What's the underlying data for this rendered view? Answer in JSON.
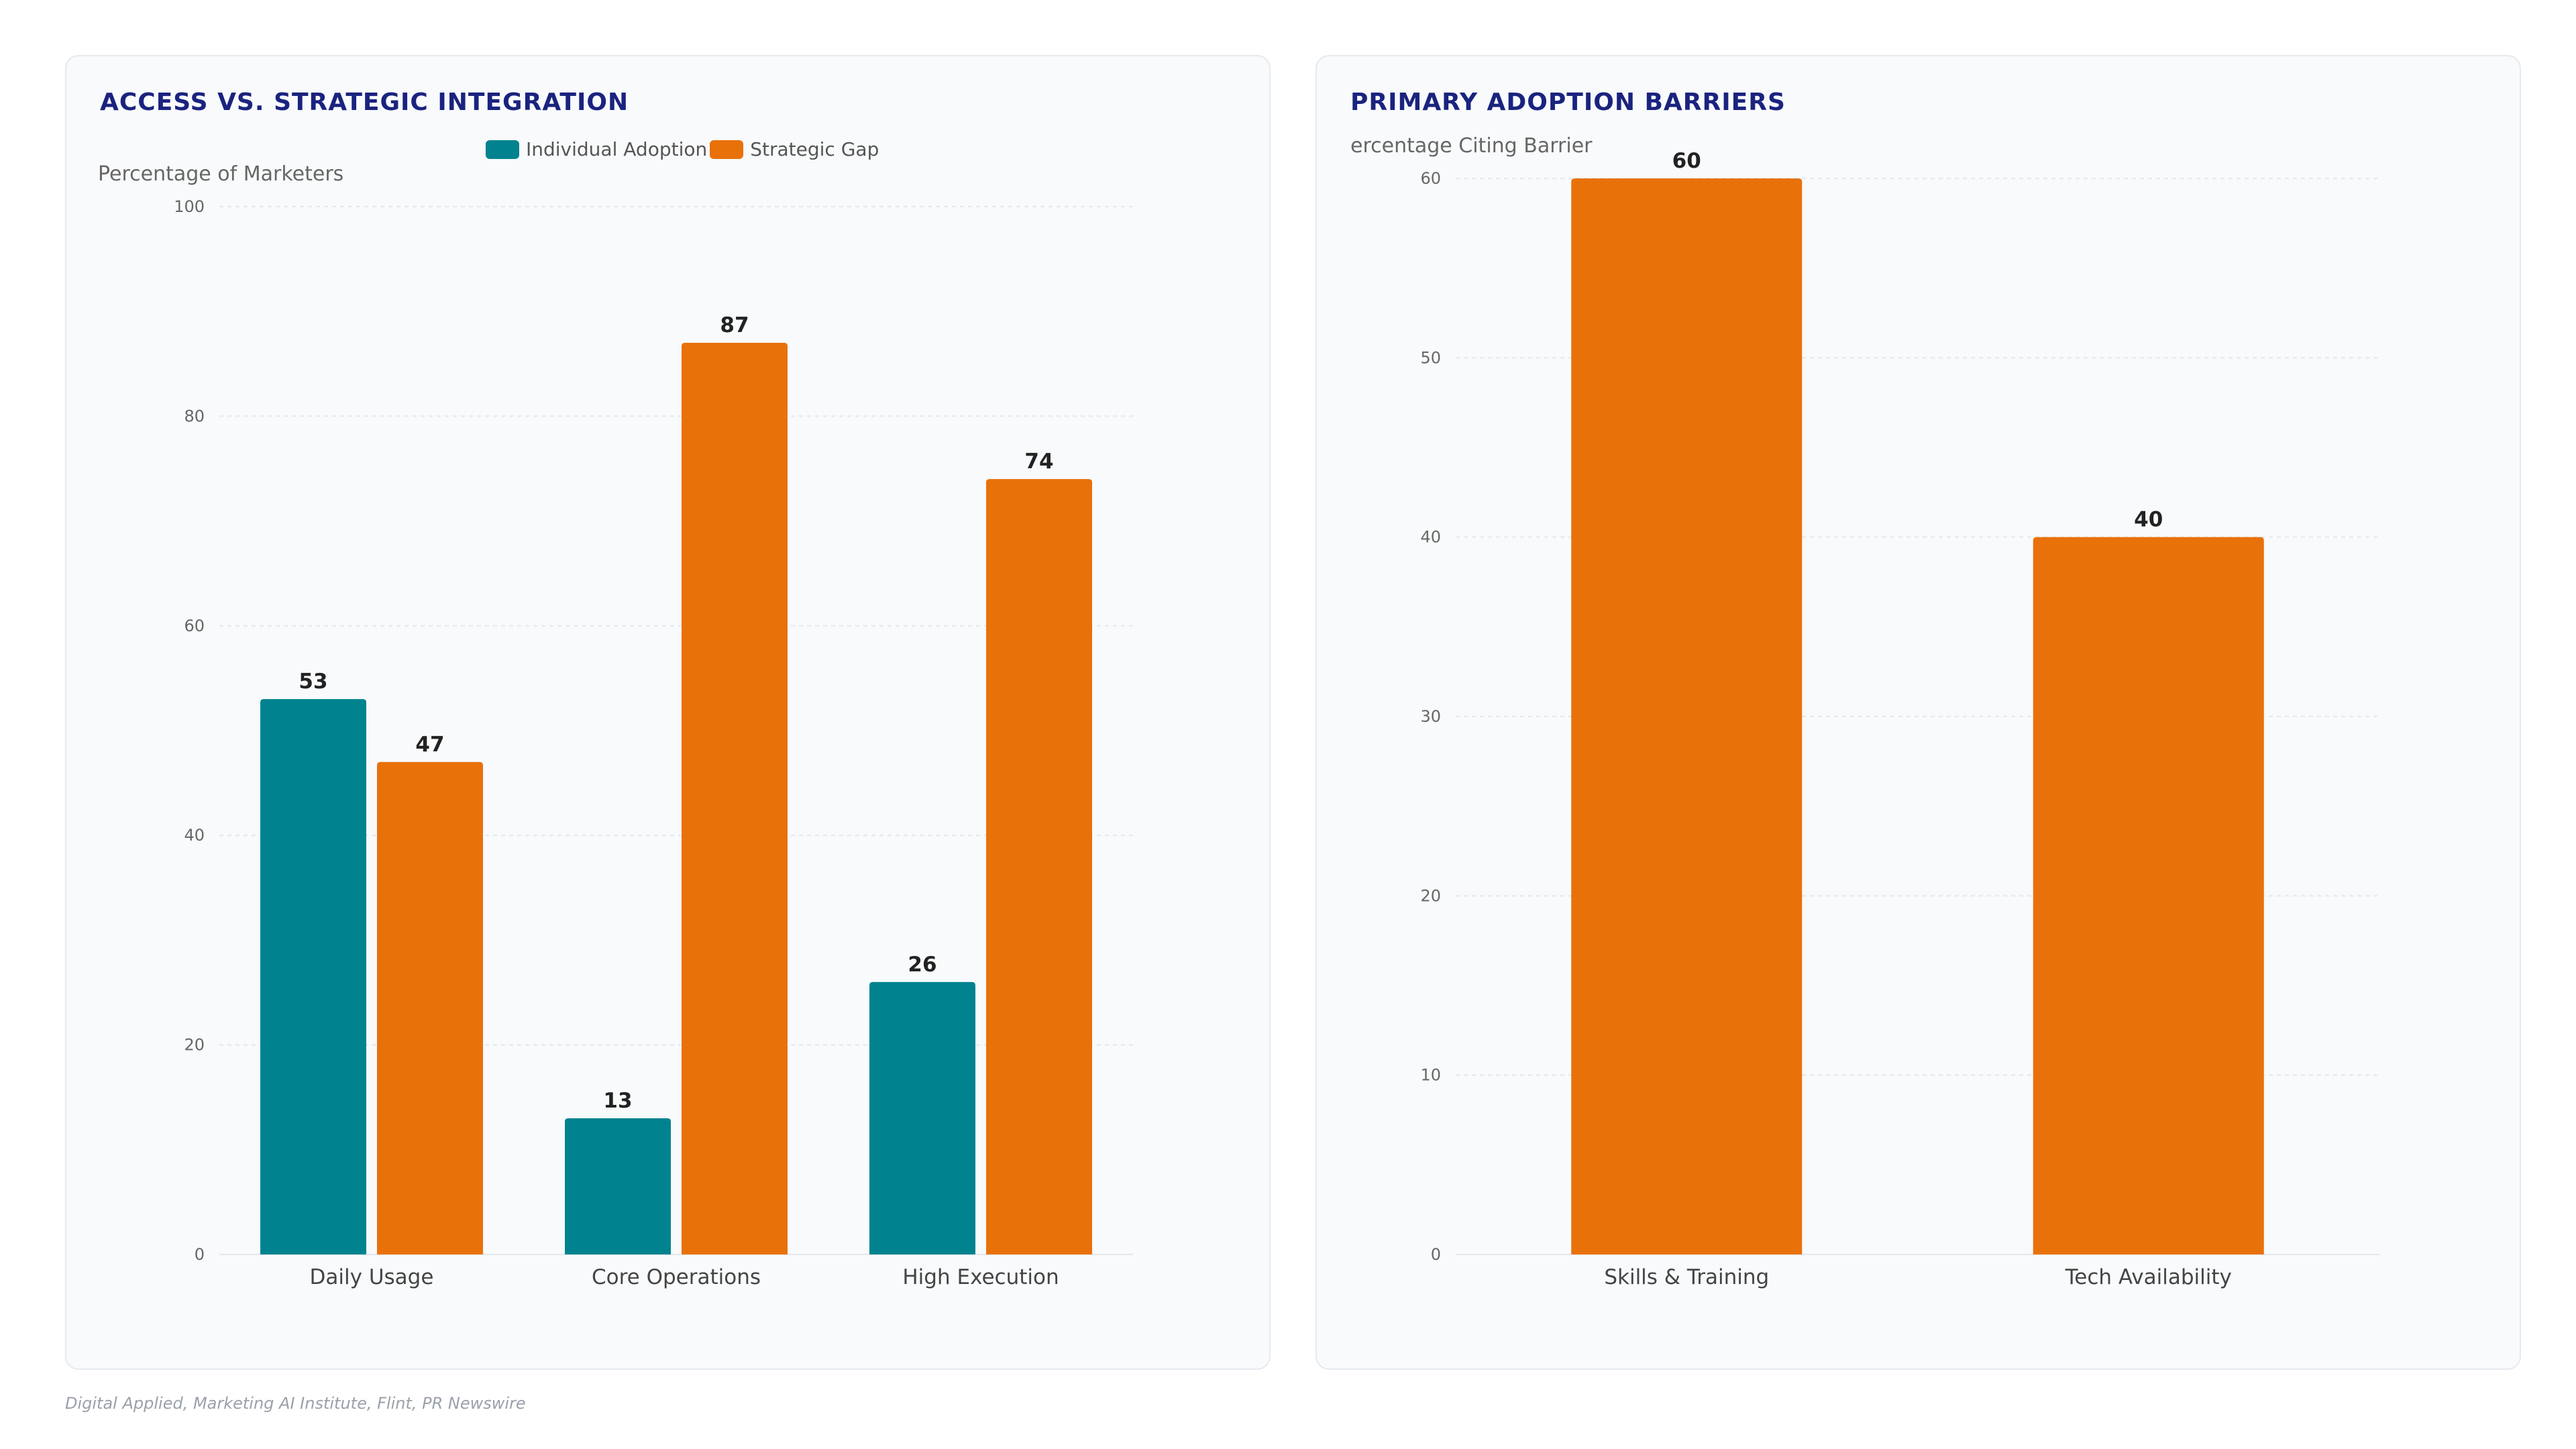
{
  "colors": {
    "teal": "#00838f",
    "orange": "#e8710a"
  },
  "chart_data": [
    {
      "type": "bar",
      "title": "ACCESS VS. STRATEGIC INTEGRATION",
      "ylabel": "Percentage of Marketers",
      "xlabel": "",
      "categories": [
        "Daily Usage",
        "Core Operations",
        "High Execution"
      ],
      "series": [
        {
          "name": "Individual Adoption",
          "values": [
            53,
            13,
            26
          ],
          "color": "#00838f"
        },
        {
          "name": "Strategic Gap",
          "values": [
            47,
            87,
            74
          ],
          "color": "#e8710a"
        }
      ],
      "ylim": [
        0,
        100
      ],
      "yticks": [
        "0",
        "20",
        "40",
        "60",
        "80",
        "100"
      ],
      "grid": true,
      "legend": "top-center"
    },
    {
      "type": "bar",
      "title": "PRIMARY ADOPTION BARRIERS",
      "ylabel": "ercentage Citing Barrier",
      "xlabel": "",
      "categories": [
        "Skills & Training",
        "Tech Availability"
      ],
      "series": [
        {
          "values": [
            60,
            40
          ],
          "color": "#e8710a"
        }
      ],
      "ylim": [
        0,
        60
      ],
      "yticks": [
        "0",
        "10",
        "20",
        "30",
        "40",
        "50",
        "60"
      ],
      "grid": true,
      "legend": "none"
    }
  ],
  "footer": {
    "source": "Digital Applied, Marketing AI Institute, Flint, PR Newswire"
  }
}
